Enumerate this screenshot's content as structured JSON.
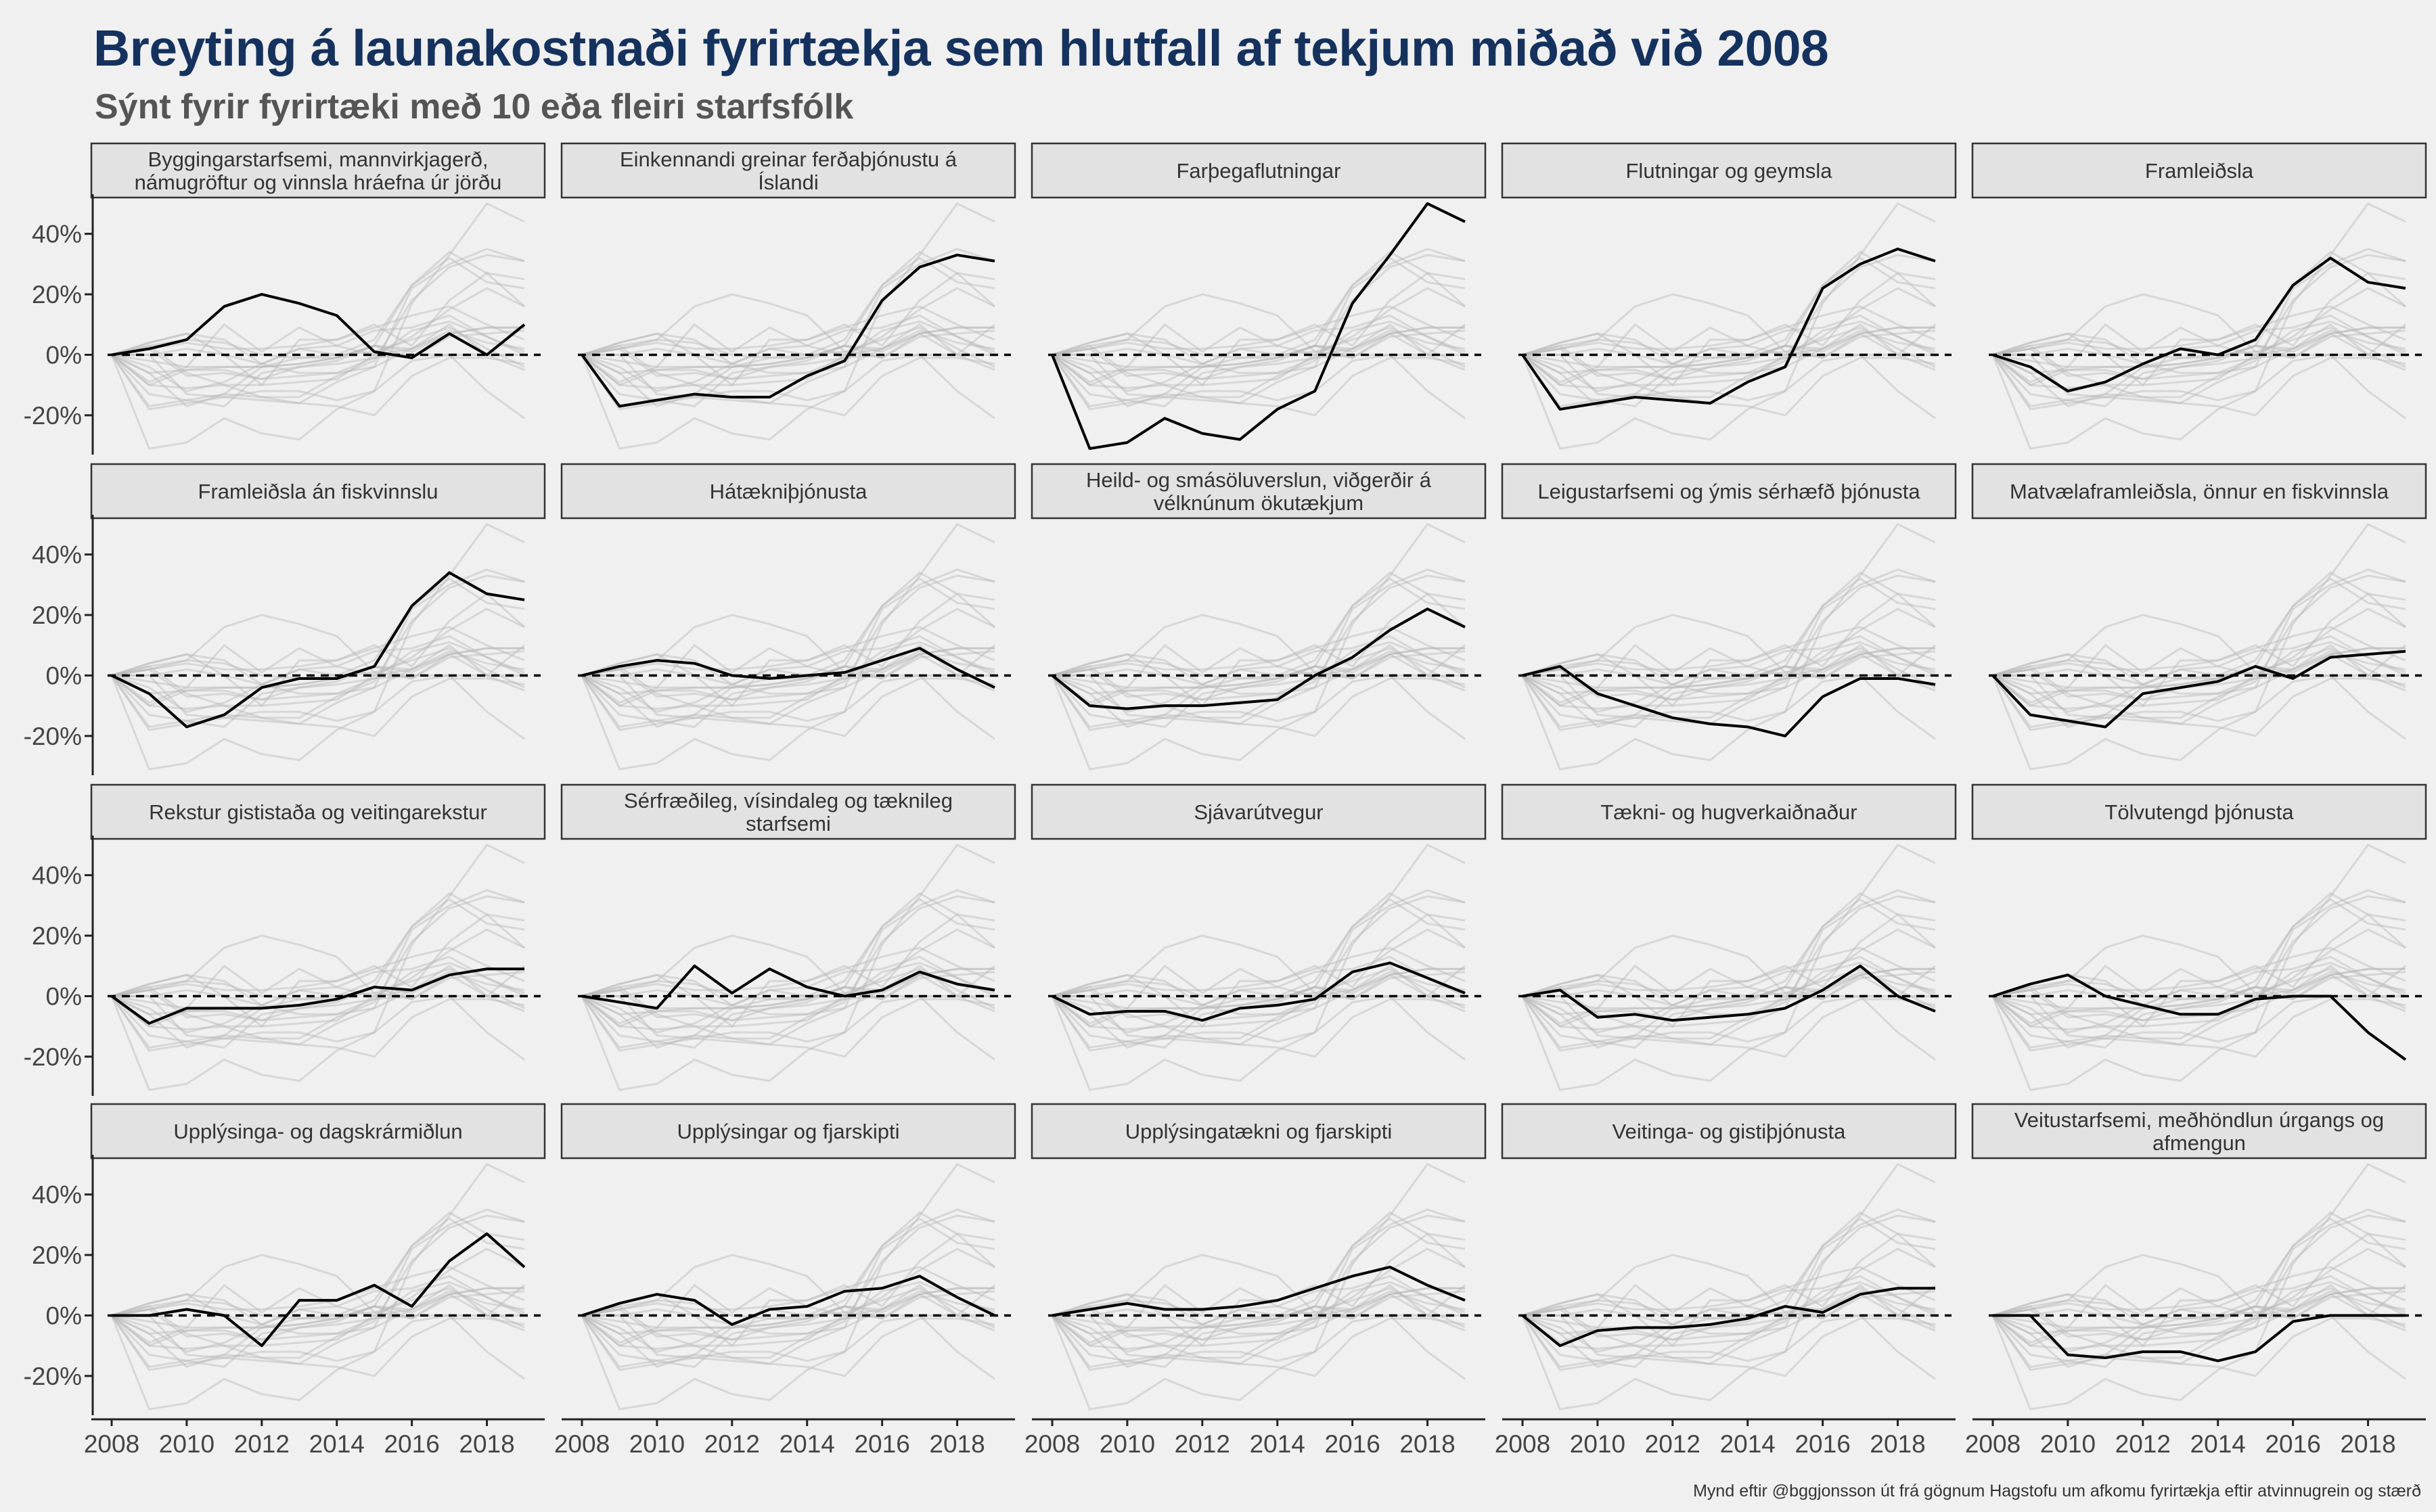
{
  "title": "Breyting á launakostnaði fyrirtækja sem hlutfall af tekjum miðað við 2008",
  "subtitle": "Sýnt fyrir fyrirtæki með 10 eða fleiri starfsfólk",
  "caption": "Mynd eftir @bggjonsson út frá gögnum Hagstofu um afkomu fyrirtækja eftir atvinnugrein og stærð",
  "colors": {
    "highlight": "#000000",
    "background_lines": "#b8b8b8",
    "strip_fill": "#e2e2e2",
    "strip_border": "#333333",
    "title": "#15325e"
  },
  "chart_data": {
    "type": "line",
    "layout": "small-multiples 4x5",
    "x": [
      2008,
      2009,
      2010,
      2011,
      2012,
      2013,
      2014,
      2015,
      2016,
      2017,
      2018,
      2019
    ],
    "xticks": [
      2008,
      2010,
      2012,
      2014,
      2016,
      2018
    ],
    "xtick_labels": [
      "2008",
      "2010",
      "2012",
      "2014",
      "2016",
      "2018"
    ],
    "ylim": [
      -0.33,
      0.52
    ],
    "yticks": [
      -0.2,
      0,
      0.2,
      0.4
    ],
    "ytick_labels": [
      "-20%",
      "0%",
      "20%",
      "40%"
    ],
    "reference_line": 0,
    "background_series": "all industries shown in light gray in every panel",
    "panels": [
      {
        "label": "Byggingarstarfsemi, mannvirkjagerð, námugröftur og vinnsla hráefna úr jörðu",
        "values": [
          0,
          0.02,
          0.05,
          0.16,
          0.2,
          0.17,
          0.13,
          0.01,
          -0.01,
          0.07,
          0.0,
          0.1
        ]
      },
      {
        "label": "Einkennandi greinar ferðaþjónustu á Íslandi",
        "values": [
          0,
          -0.17,
          -0.15,
          -0.13,
          -0.14,
          -0.14,
          -0.07,
          -0.02,
          0.18,
          0.29,
          0.33,
          0.31
        ]
      },
      {
        "label": "Farþegaflutningar",
        "values": [
          0,
          -0.31,
          -0.29,
          -0.21,
          -0.26,
          -0.28,
          -0.18,
          -0.12,
          0.17,
          0.33,
          0.5,
          0.44
        ]
      },
      {
        "label": "Flutningar og geymsla",
        "values": [
          0,
          -0.18,
          -0.16,
          -0.14,
          -0.15,
          -0.16,
          -0.09,
          -0.04,
          0.22,
          0.3,
          0.35,
          0.31
        ]
      },
      {
        "label": "Framleiðsla",
        "values": [
          0,
          -0.04,
          -0.12,
          -0.09,
          -0.03,
          0.02,
          0.0,
          0.05,
          0.23,
          0.32,
          0.24,
          0.22
        ]
      },
      {
        "label": "Framleiðsla án fiskvinnslu",
        "values": [
          0,
          -0.06,
          -0.17,
          -0.13,
          -0.04,
          -0.01,
          -0.01,
          0.03,
          0.23,
          0.34,
          0.27,
          0.25
        ]
      },
      {
        "label": "Hátækniþjónusta",
        "values": [
          0,
          0.03,
          0.05,
          0.04,
          0.0,
          -0.01,
          0.0,
          0.01,
          0.05,
          0.09,
          0.02,
          -0.04
        ]
      },
      {
        "label": "Heild- og smásöluverslun, viðgerðir á vélknúnum ökutækjum",
        "values": [
          0,
          -0.1,
          -0.11,
          -0.1,
          -0.1,
          -0.09,
          -0.08,
          0.0,
          0.06,
          0.15,
          0.22,
          0.16
        ]
      },
      {
        "label": "Leigustarfsemi og ýmis sérhæfð þjónusta",
        "values": [
          0,
          0.03,
          -0.06,
          -0.1,
          -0.14,
          -0.16,
          -0.17,
          -0.2,
          -0.07,
          -0.01,
          -0.01,
          -0.03
        ]
      },
      {
        "label": "Matvælaframleiðsla, önnur en fiskvinnsla",
        "values": [
          0,
          -0.13,
          -0.15,
          -0.17,
          -0.06,
          -0.04,
          -0.02,
          0.03,
          -0.01,
          0.06,
          0.07,
          0.08
        ]
      },
      {
        "label": "Rekstur gististaða og veitingarekstur",
        "values": [
          0,
          -0.09,
          -0.04,
          -0.04,
          -0.04,
          -0.03,
          -0.01,
          0.03,
          0.02,
          0.07,
          0.09,
          0.09
        ]
      },
      {
        "label": "Sérfræðileg, vísindaleg og tæknileg starfsemi",
        "values": [
          0,
          -0.02,
          -0.04,
          0.1,
          0.01,
          0.09,
          0.03,
          0.0,
          0.02,
          0.08,
          0.04,
          0.02
        ]
      },
      {
        "label": "Sjávarútvegur",
        "values": [
          0,
          -0.06,
          -0.05,
          -0.05,
          -0.08,
          -0.04,
          -0.03,
          -0.01,
          0.08,
          0.11,
          0.06,
          0.01
        ]
      },
      {
        "label": "Tækni- og hugverkaiðnaður",
        "values": [
          0,
          0.02,
          -0.07,
          -0.06,
          -0.08,
          -0.07,
          -0.06,
          -0.04,
          0.02,
          0.1,
          0.0,
          -0.05
        ]
      },
      {
        "label": "Tölvutengd þjónusta",
        "values": [
          0,
          0.04,
          0.07,
          0.0,
          -0.03,
          -0.06,
          -0.06,
          -0.01,
          0.0,
          0.0,
          -0.12,
          -0.21
        ]
      },
      {
        "label": "Upplýsinga- og dagskrármiðlun",
        "values": [
          0,
          0.0,
          0.02,
          0.0,
          -0.1,
          0.05,
          0.05,
          0.1,
          0.03,
          0.18,
          0.27,
          0.16
        ]
      },
      {
        "label": "Upplýsingar og fjarskipti",
        "values": [
          0,
          0.04,
          0.07,
          0.05,
          -0.03,
          0.02,
          0.03,
          0.08,
          0.09,
          0.13,
          0.06,
          0.0
        ]
      },
      {
        "label": "Upplýsingatækni og fjarskipti",
        "values": [
          0,
          0.02,
          0.04,
          0.02,
          0.02,
          0.03,
          0.05,
          0.09,
          0.13,
          0.16,
          0.1,
          0.05
        ]
      },
      {
        "label": "Veitinga- og gistiþjónusta",
        "values": [
          0,
          -0.1,
          -0.05,
          -0.04,
          -0.04,
          -0.03,
          -0.01,
          0.03,
          0.01,
          0.07,
          0.09,
          0.09
        ]
      },
      {
        "label": "Veitustarfsemi, meðhöndlun úrgangs og afmengun",
        "values": [
          0,
          0.0,
          -0.13,
          -0.14,
          -0.12,
          -0.12,
          -0.15,
          -0.12,
          -0.02,
          0.0,
          0.0,
          0.0
        ]
      }
    ]
  }
}
